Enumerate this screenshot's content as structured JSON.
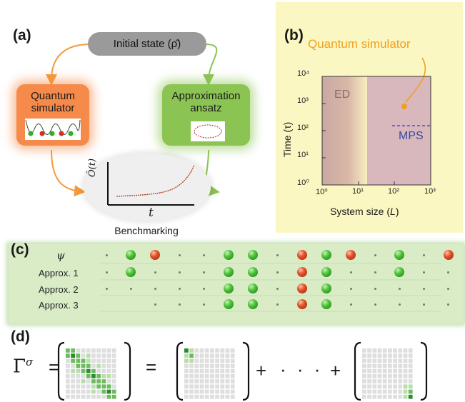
{
  "panel_a": {
    "label": "(a)",
    "initial_state": "Initial state (ρ̂)",
    "quantum_simulator": [
      "Quantum",
      "simulator"
    ],
    "approximation": [
      "Approximation",
      "ansatz"
    ],
    "y_label": "Ô(t)",
    "x_label": "t",
    "benchmarking": "Benchmarking",
    "colors": {
      "orange": "#f39a3a",
      "green": "#8cc454",
      "gray": "#9a9a9a"
    }
  },
  "panel_b": {
    "label": "(b)",
    "title": "Quantum simulator",
    "ylabel": "Time (τ)",
    "xlabel_main": "System size (",
    "xlabel_var": "L",
    "xlabel_end": ")",
    "y_ticks": [
      "10⁰",
      "10¹",
      "10²",
      "10³",
      "10⁴"
    ],
    "x_ticks": [
      "10⁰",
      "10¹",
      "10²",
      "10³"
    ],
    "region_ed": "ED",
    "region_mps": "MPS"
  },
  "panel_c": {
    "label": "(c)",
    "rows": [
      {
        "label": "ψ",
        "cells": [
          "d",
          "g",
          "r",
          "d",
          "d",
          "g",
          "g",
          "d",
          "r",
          "g",
          "r",
          "d",
          "g",
          "d",
          "r"
        ]
      },
      {
        "label": "Approx. 1",
        "cells": [
          "d",
          "g",
          "d",
          "d",
          "d",
          "g",
          "g",
          "d",
          "r",
          "g",
          "d",
          "d",
          "g",
          "d",
          "d"
        ]
      },
      {
        "label": "Approx. 2",
        "cells": [
          "d",
          "d",
          "d",
          "d",
          "d",
          "g",
          "g",
          "d",
          "r",
          "g",
          "d",
          "d",
          "d",
          "d",
          "d"
        ]
      },
      {
        "label": "Approx. 3",
        "cells": [
          "",
          "",
          "d",
          "d",
          "d",
          "g",
          "g",
          "d",
          "r",
          "g",
          "d",
          "d",
          "d",
          "d",
          "d"
        ]
      }
    ]
  },
  "panel_d": {
    "label": "(d)",
    "lhs": "Γ",
    "lhs_sup": "σ",
    "eq": "=",
    "plus1": "+",
    "dots": "· · ·",
    "plus2": "+"
  }
}
